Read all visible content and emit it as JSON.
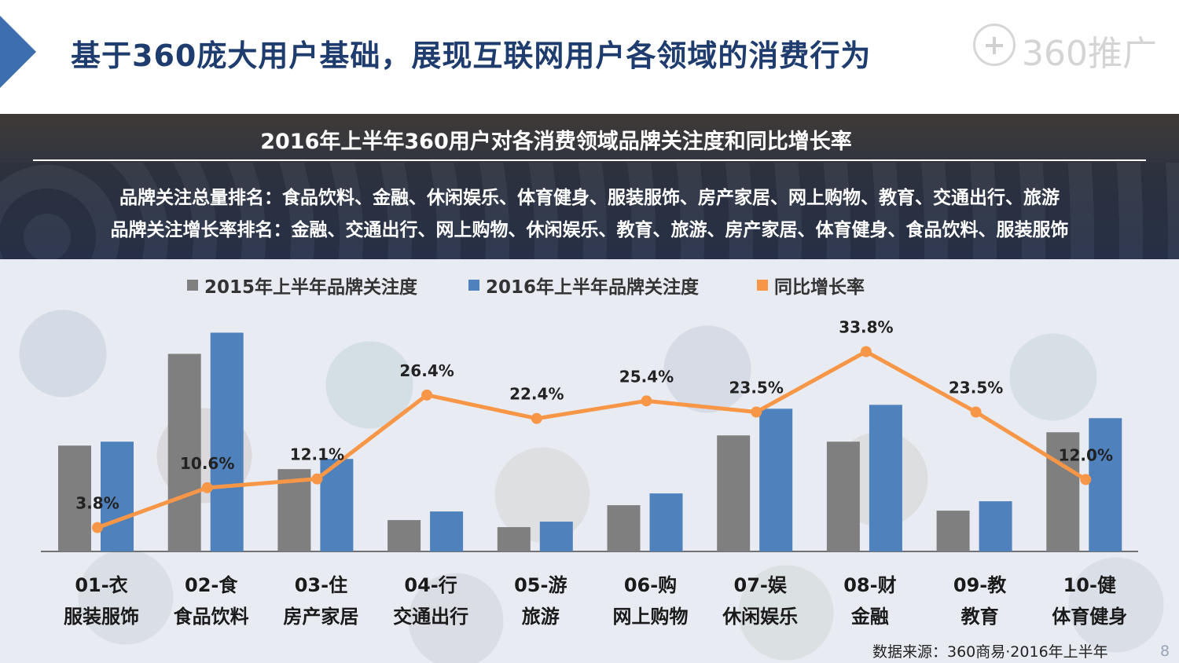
{
  "header": {
    "title": "基于360庞大用户基础，展现互联网用户各领域的消费行为",
    "logo_text": "360推广"
  },
  "summary": {
    "rank_total": "品牌关注总量排名：食品饮料、金融、休闲娱乐、体育健身、服装服饰、房产家居、网上购物、教育、交通出行、旅游",
    "rank_growth": "品牌关注增长率排名：金融、交通出行、网上购物、休闲娱乐、教育、旅游、房产家居、体育健身、食品饮料、服装服饰"
  },
  "colors": {
    "series_2015": "#7f7f7f",
    "series_2016": "#4f81bd",
    "growth_line": "#f79646",
    "header_title": "#1f3c6e"
  },
  "chart_data": {
    "type": "bar",
    "title": "2016年上半年360用户对各消费领域品牌关注度和同比增长率",
    "categories": [
      {
        "code": "01-衣",
        "name": "服装服饰"
      },
      {
        "code": "02-食",
        "name": "食品饮料"
      },
      {
        "code": "03-住",
        "name": "房产家居"
      },
      {
        "code": "04-行",
        "name": "交通出行"
      },
      {
        "code": "05-游",
        "name": "旅游"
      },
      {
        "code": "06-购",
        "name": "网上购物"
      },
      {
        "code": "07-娱",
        "name": "休闲娱乐"
      },
      {
        "code": "08-财",
        "name": "金融"
      },
      {
        "code": "09-教",
        "name": "教育"
      },
      {
        "code": "10-健",
        "name": "体育健身"
      }
    ],
    "series": [
      {
        "name": "2015年上半年品牌关注度",
        "type": "bar",
        "values": [
          135,
          252,
          105,
          40,
          31,
          59,
          148,
          140,
          52,
          152
        ]
      },
      {
        "name": "2016年上半年品牌关注度",
        "type": "bar",
        "values": [
          140,
          279,
          118,
          51,
          38,
          74,
          182,
          187,
          64,
          170
        ]
      },
      {
        "name": "同比增长率",
        "type": "line",
        "values": [
          3.8,
          10.6,
          12.1,
          26.4,
          22.4,
          25.4,
          23.5,
          33.8,
          23.5,
          12.0
        ],
        "labels": [
          "3.8%",
          "10.6%",
          "12.1%",
          "26.4%",
          "22.4%",
          "25.4%",
          "23.5%",
          "33.8%",
          "23.5%",
          "12.0%"
        ]
      }
    ],
    "ylim_bars": [
      0,
      300
    ],
    "ylim_growth": [
      0,
      40
    ],
    "legend_position": "top"
  },
  "footer": {
    "source": "数据来源：360商易·2016年上半年",
    "page_number": "8"
  }
}
